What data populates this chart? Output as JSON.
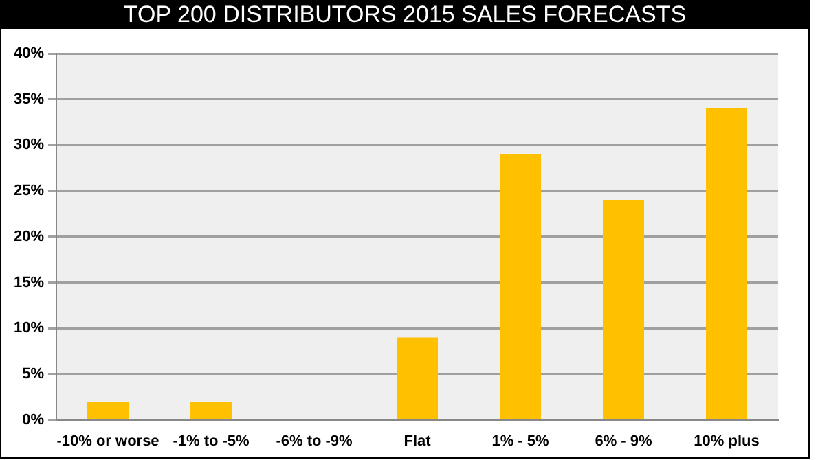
{
  "chart_data": {
    "type": "bar",
    "title": "TOP 200 DISTRIBUTORS 2015 SALES FORECASTS",
    "categories": [
      "-10% or worse",
      "-1% to -5%",
      "-6% to -9%",
      "Flat",
      "1% - 5%",
      "6% - 9%",
      "10% plus"
    ],
    "values": [
      2,
      2,
      0,
      9,
      29,
      24,
      34
    ],
    "color": "#ffc000",
    "ylim": [
      0,
      40
    ],
    "yticks": [
      {
        "value": 0,
        "label": "0%"
      },
      {
        "value": 5,
        "label": "5%"
      },
      {
        "value": 10,
        "label": "10%"
      },
      {
        "value": 15,
        "label": "15%"
      },
      {
        "value": 20,
        "label": "20%"
      },
      {
        "value": 25,
        "label": "25%"
      },
      {
        "value": 30,
        "label": "30%"
      },
      {
        "value": 35,
        "label": "35%"
      },
      {
        "value": 40,
        "label": "40%"
      }
    ],
    "grid": "y",
    "legend": false
  }
}
